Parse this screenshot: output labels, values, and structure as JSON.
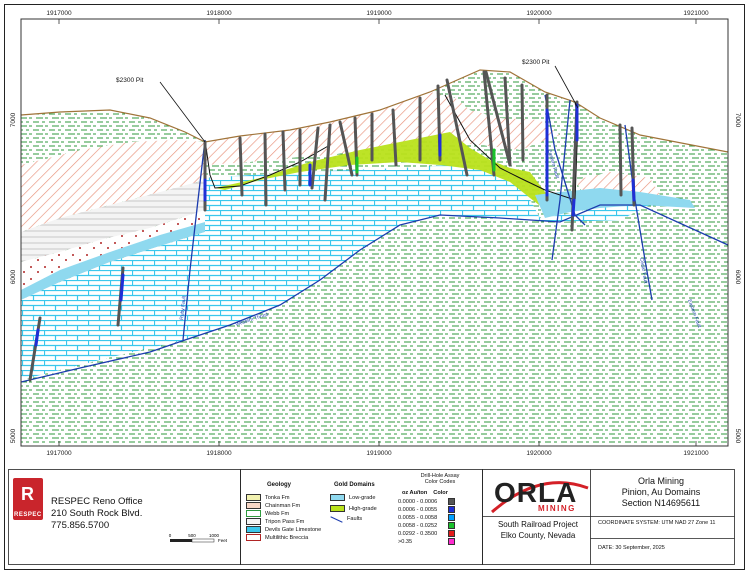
{
  "section": {
    "x_ticks": [
      "1917000",
      "1918000",
      "1919000",
      "1920000",
      "1921000"
    ],
    "y_ticks": [
      "7000",
      "6000",
      "5000"
    ],
    "pit_labels": [
      "$2300 Pit",
      "$2300 Pit"
    ],
    "fault_labels": [
      "Ruby Fault",
      "Western Thrust",
      "Eastern Fault",
      "Cedar Fault",
      "Eastern Fault"
    ]
  },
  "company": {
    "logo_text": "RESPEC",
    "office_lines": [
      "RESPEC Reno Office",
      "210 South Rock Blvd.",
      "775.856.5700"
    ]
  },
  "scale_bar": {
    "labels": [
      "0",
      "500",
      "1000"
    ],
    "unit": "Feet"
  },
  "legend": {
    "geology_title": "Geology",
    "geology": [
      {
        "label": "Tonka Fm",
        "color": "#f2f2b0"
      },
      {
        "label": "Chainman Fm",
        "color": "#f7d6c6"
      },
      {
        "label": "Webb Fm",
        "color": "#ffffff"
      },
      {
        "label": "Tripon Pass Fm",
        "color": "#ffffff"
      },
      {
        "label": "Devils Gate Limestone",
        "color": "#3bc7ec"
      },
      {
        "label": "Multilithic Breccia",
        "color": "#ffffff"
      }
    ],
    "domains_title": "Gold Domains",
    "domains": [
      {
        "label": "Low-grade",
        "color": "#8fd9ef"
      },
      {
        "label": "High-grade",
        "color": "#b9e21b"
      },
      {
        "label": "Faults",
        "color": "#1c3cae"
      }
    ],
    "assay_title": [
      "Drill-Hole Assay",
      "Color Codes"
    ],
    "assay_headers": [
      "oz Au/ton",
      "Color"
    ],
    "assay": [
      {
        "label": "0.0000 - 0.0006",
        "color": "#555555"
      },
      {
        "label": "0.0006 - 0.0055",
        "color": "#1f2fd6"
      },
      {
        "label": "0.0055 - 0.0058",
        "color": "#00a0ff"
      },
      {
        "label": "0.0058 - 0.0252",
        "color": "#19c12b"
      },
      {
        "label": "0.0292 - 0.3500",
        "color": "#e21b1b"
      },
      {
        "label": ">0.35",
        "color": "#ff2bd0"
      }
    ]
  },
  "title_block": {
    "logo_text": "ORLA",
    "logo_sub": "MINING",
    "title_lines": [
      "Orla Mining",
      "Pinion, Au Domains",
      "Section N14695611"
    ],
    "project_lines": [
      "South Railroad Project",
      "Elko County, Nevada"
    ],
    "coordinate_system": "COORDINATE SYSTEM: UTM NAD 27 Zone 11",
    "date": "DATE: 30 September, 2025"
  },
  "colors": {
    "webb_green": "#2f9a3d",
    "limestone_blue": "#3bc7ec",
    "high_grade": "#b9e21b",
    "fault_blue": "#1c3cae",
    "chainman_orange": "#e8917a",
    "respec_red": "#c9252c",
    "orla_red": "#d42027"
  }
}
